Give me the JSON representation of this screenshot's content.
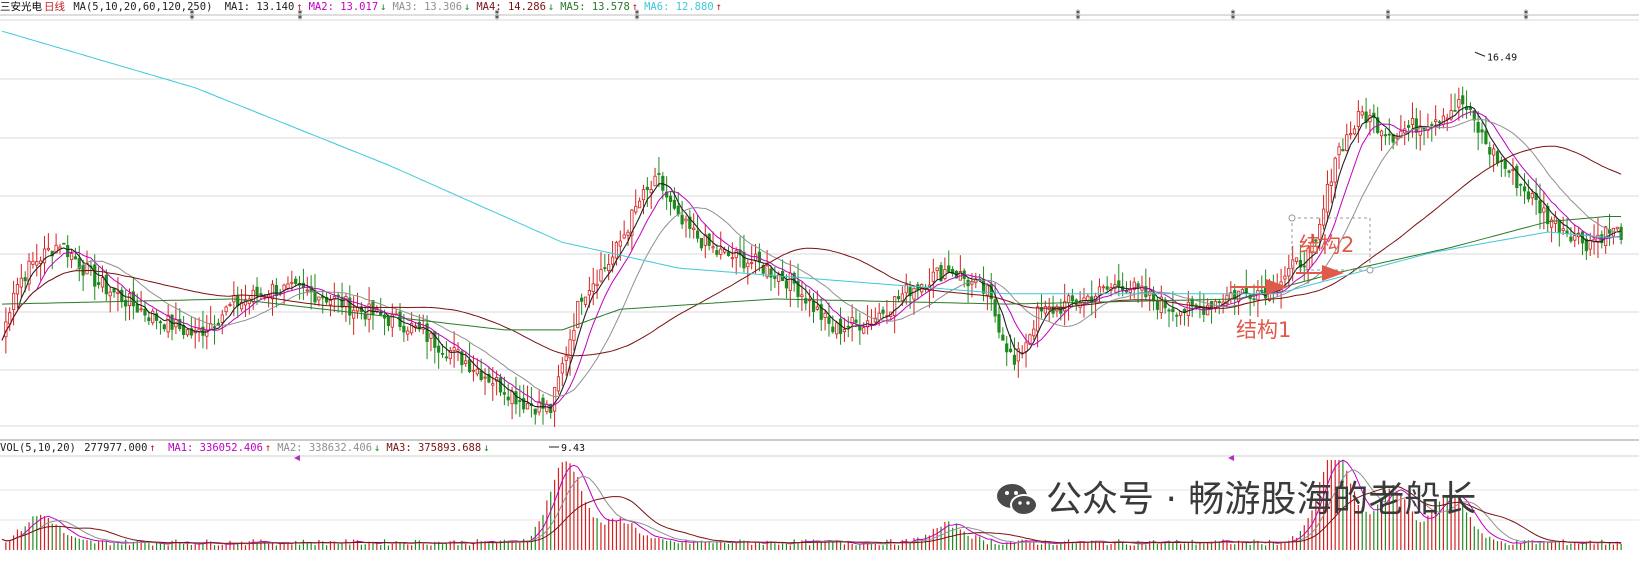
{
  "price_header": {
    "stock_name": "三安光电",
    "period": "日线",
    "ma_spec": "MA(5,10,20,60,120,250)",
    "items": [
      {
        "label": "MA1:",
        "value": "13.140",
        "arrow": "↑",
        "color": "#222222"
      },
      {
        "label": "MA2:",
        "value": "13.017",
        "arrow": "↓",
        "color": "#c000c0"
      },
      {
        "label": "MA3:",
        "value": "13.306",
        "arrow": "↓",
        "color": "#909090"
      },
      {
        "label": "MA4:",
        "value": "14.286",
        "arrow": "↓",
        "color": "#7a1010"
      },
      {
        "label": "MA5:",
        "value": "13.578",
        "arrow": "↑",
        "color": "#2a7a2a"
      },
      {
        "label": "MA6:",
        "value": "12.880",
        "arrow": "↑",
        "color": "#40c8d8"
      }
    ]
  },
  "volume_header": {
    "spec": "VOL(5,10,20)",
    "value": "277977.000",
    "value_arrow": "↑",
    "items": [
      {
        "label": "MA1:",
        "value": "336052.406",
        "arrow": "↑",
        "color": "#c000c0"
      },
      {
        "label": "MA2:",
        "value": "338632.406",
        "arrow": "↓",
        "color": "#909090"
      },
      {
        "label": "MA3:",
        "value": "375893.688",
        "arrow": "↓",
        "color": "#7a1010"
      }
    ]
  },
  "annotations": {
    "high_label": "16.49",
    "low_label": "9.43",
    "structure1": "结构1",
    "structure2": "结构2"
  },
  "watermark": {
    "text": "公众号 · 畅游股海的老船长",
    "icon": "wechat-icon"
  },
  "colors": {
    "up": "#d42020",
    "down": "#1e8a1e",
    "annotation": "#e05a4a",
    "grid": "#d8d8d8"
  },
  "chart_data": [
    {
      "type": "candlestick",
      "title": "三安光电 日线",
      "ylim": [
        9.0,
        17.0
      ],
      "price_range": {
        "high": 16.49,
        "low": 9.43
      },
      "grid": true,
      "series_anchors": [
        {
          "name": "close",
          "points": [
            [
              0,
              10.9
            ],
            [
              3,
              11.9
            ],
            [
              8,
              12.4
            ],
            [
              15,
              12.8
            ],
            [
              25,
              12.0
            ],
            [
              38,
              11.4
            ],
            [
              50,
              11.0
            ],
            [
              60,
              11.6
            ],
            [
              70,
              11.9
            ],
            [
              82,
              11.8
            ],
            [
              92,
              11.5
            ],
            [
              105,
              11.2
            ],
            [
              120,
              10.5
            ],
            [
              135,
              9.7
            ],
            [
              142,
              9.55
            ],
            [
              150,
              11.8
            ],
            [
              158,
              12.5
            ],
            [
              165,
              13.6
            ],
            [
              170,
              14.0
            ],
            [
              175,
              13.2
            ],
            [
              185,
              12.6
            ],
            [
              195,
              12.4
            ],
            [
              205,
              12.0
            ],
            [
              215,
              11.1
            ],
            [
              225,
              11.3
            ],
            [
              235,
              11.9
            ],
            [
              245,
              12.3
            ],
            [
              255,
              11.8
            ],
            [
              262,
              10.4
            ],
            [
              268,
              11.4
            ],
            [
              280,
              11.7
            ],
            [
              290,
              12.0
            ],
            [
              300,
              11.6
            ],
            [
              308,
              11.45
            ],
            [
              318,
              11.8
            ],
            [
              328,
              11.9
            ],
            [
              340,
              12.7
            ],
            [
              345,
              14.5
            ],
            [
              352,
              15.3
            ],
            [
              360,
              14.9
            ],
            [
              370,
              15.2
            ],
            [
              378,
              15.5
            ],
            [
              385,
              14.6
            ],
            [
              392,
              14.0
            ],
            [
              400,
              13.3
            ],
            [
              410,
              12.8
            ],
            [
              415,
              13.0
            ]
          ]
        },
        {
          "name": "MA5",
          "points": [
            [
              0,
              11.6
            ],
            [
              60,
              11.7
            ],
            [
              130,
              11.1
            ],
            [
              145,
              11.1
            ],
            [
              160,
              11.5
            ],
            [
              200,
              11.7
            ],
            [
              260,
              11.6
            ],
            [
              320,
              11.7
            ],
            [
              345,
              12.2
            ],
            [
              375,
              12.7
            ],
            [
              400,
              13.2
            ],
            [
              415,
              13.3
            ]
          ]
        },
        {
          "name": "MA6",
          "points": [
            [
              0,
              16.9
            ],
            [
              50,
              15.8
            ],
            [
              100,
              14.3
            ],
            [
              145,
              12.8
            ],
            [
              175,
              12.3
            ],
            [
              260,
              11.8
            ],
            [
              330,
              11.8
            ],
            [
              370,
              12.6
            ],
            [
              400,
              13.0
            ],
            [
              415,
              12.9
            ]
          ]
        }
      ]
    },
    {
      "type": "bar",
      "title": "VOL(5,10,20)",
      "values_note": "volume spikes near day 146 and days 345-380",
      "spikes": [
        [
          10,
          0.3
        ],
        [
          146,
          0.9
        ],
        [
          160,
          0.25
        ],
        [
          245,
          0.2
        ],
        [
          345,
          1.0
        ],
        [
          360,
          0.6
        ],
        [
          375,
          0.55
        ]
      ]
    }
  ]
}
